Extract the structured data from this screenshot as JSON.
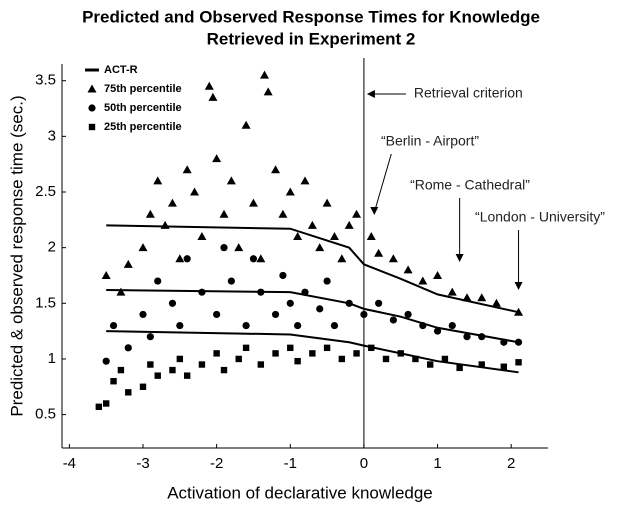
{
  "chart_data": {
    "type": "scatter",
    "title": "Predicted and Observed Response Times for Knowledge",
    "subtitle": "Retrieved in Experiment 2",
    "x_label": "Activation of declarative knowledge",
    "y_label": "Predicted & observed response time (sec.)",
    "xlim": [
      -4.1,
      2.5
    ],
    "ylim": [
      0.2,
      3.65
    ],
    "xticks": [
      -4,
      -3,
      -2,
      -1,
      0,
      1,
      2
    ],
    "yticks": [
      0.5,
      1,
      1.5,
      2,
      2.5,
      3,
      3.5
    ],
    "reference_line": {
      "x": 0,
      "label": "Retrieval criterion"
    },
    "annotations": [
      {
        "text": "“Berlin - Airport”",
        "x": 0.1
      },
      {
        "text": "“Rome - Cathedral”",
        "x": 1.3
      },
      {
        "text": "“London - University”",
        "x": 2.1
      }
    ],
    "series": [
      {
        "name": "ACT-R",
        "marker": "line",
        "color": "#000000",
        "lines": [
          {
            "x": [
              -3.5,
              -1,
              -0.2,
              0,
              0.5,
              1,
              2.1
            ],
            "values": [
              2.2,
              2.17,
              2.0,
              1.85,
              1.72,
              1.58,
              1.42
            ]
          },
          {
            "x": [
              -3.5,
              -1,
              -0.2,
              0,
              0.5,
              1,
              2.1
            ],
            "values": [
              1.62,
              1.6,
              1.5,
              1.45,
              1.38,
              1.28,
              1.15
            ]
          },
          {
            "x": [
              -3.5,
              -1,
              -0.2,
              0,
              0.5,
              1,
              2.1
            ],
            "values": [
              1.25,
              1.22,
              1.15,
              1.12,
              1.05,
              0.98,
              0.88
            ]
          }
        ]
      },
      {
        "name": "75th percentile",
        "marker": "triangle",
        "color": "#000000",
        "x": [
          -3.5,
          -3.3,
          -3.2,
          -3.0,
          -2.9,
          -2.8,
          -2.7,
          -2.6,
          -2.5,
          -2.4,
          -2.3,
          -2.2,
          -2.1,
          -2.05,
          -2.0,
          -1.9,
          -1.8,
          -1.7,
          -1.6,
          -1.5,
          -1.4,
          -1.35,
          -1.3,
          -1.2,
          -1.1,
          -1.0,
          -0.9,
          -0.8,
          -0.7,
          -0.6,
          -0.5,
          -0.4,
          -0.3,
          -0.2,
          -0.1,
          0.1,
          0.2,
          0.4,
          0.6,
          0.8,
          1.0,
          1.2,
          1.4,
          1.6,
          1.8,
          2.1
        ],
        "values": [
          1.75,
          1.6,
          1.85,
          2.0,
          2.3,
          2.6,
          2.2,
          2.4,
          1.9,
          2.7,
          2.5,
          2.1,
          3.45,
          3.35,
          2.8,
          2.3,
          2.6,
          2.0,
          3.1,
          2.4,
          1.9,
          3.55,
          3.4,
          2.7,
          2.3,
          2.5,
          2.1,
          2.6,
          2.2,
          2.0,
          2.4,
          2.1,
          1.9,
          2.2,
          2.3,
          2.1,
          1.95,
          1.9,
          1.8,
          1.7,
          1.75,
          1.6,
          1.55,
          1.55,
          1.5,
          1.42
        ]
      },
      {
        "name": "50th percentile",
        "marker": "circle",
        "color": "#000000",
        "x": [
          -3.5,
          -3.4,
          -3.2,
          -3.0,
          -2.9,
          -2.8,
          -2.6,
          -2.5,
          -2.4,
          -2.2,
          -2.0,
          -1.9,
          -1.8,
          -1.6,
          -1.5,
          -1.4,
          -1.2,
          -1.1,
          -1.0,
          -0.9,
          -0.8,
          -0.6,
          -0.5,
          -0.4,
          -0.2,
          0.0,
          0.2,
          0.4,
          0.6,
          0.8,
          1.0,
          1.2,
          1.4,
          1.6,
          1.9,
          2.1
        ],
        "values": [
          0.98,
          1.3,
          1.1,
          1.4,
          1.2,
          1.7,
          1.5,
          1.3,
          1.9,
          1.6,
          1.4,
          2.0,
          1.7,
          1.3,
          1.9,
          1.6,
          1.4,
          1.75,
          1.5,
          1.3,
          1.6,
          1.45,
          1.7,
          1.3,
          1.5,
          1.4,
          1.5,
          1.35,
          1.4,
          1.3,
          1.25,
          1.3,
          1.2,
          1.2,
          1.15,
          1.15
        ]
      },
      {
        "name": "25th percentile",
        "marker": "square",
        "color": "#000000",
        "x": [
          -3.6,
          -3.5,
          -3.4,
          -3.3,
          -3.2,
          -3.0,
          -2.9,
          -2.8,
          -2.6,
          -2.5,
          -2.4,
          -2.2,
          -2.0,
          -1.9,
          -1.7,
          -1.6,
          -1.4,
          -1.2,
          -1.0,
          -0.9,
          -0.7,
          -0.5,
          -0.3,
          -0.1,
          0.1,
          0.3,
          0.5,
          0.7,
          0.9,
          1.1,
          1.3,
          1.6,
          1.9,
          2.1
        ],
        "values": [
          0.57,
          0.6,
          0.8,
          0.9,
          0.7,
          0.75,
          0.95,
          0.85,
          0.9,
          1.0,
          0.85,
          0.95,
          1.05,
          0.9,
          1.0,
          1.1,
          0.95,
          1.05,
          1.1,
          0.98,
          1.05,
          1.1,
          1.0,
          1.05,
          1.1,
          1.0,
          1.05,
          1.0,
          0.95,
          1.0,
          0.92,
          0.95,
          0.93,
          0.97
        ]
      }
    ]
  }
}
